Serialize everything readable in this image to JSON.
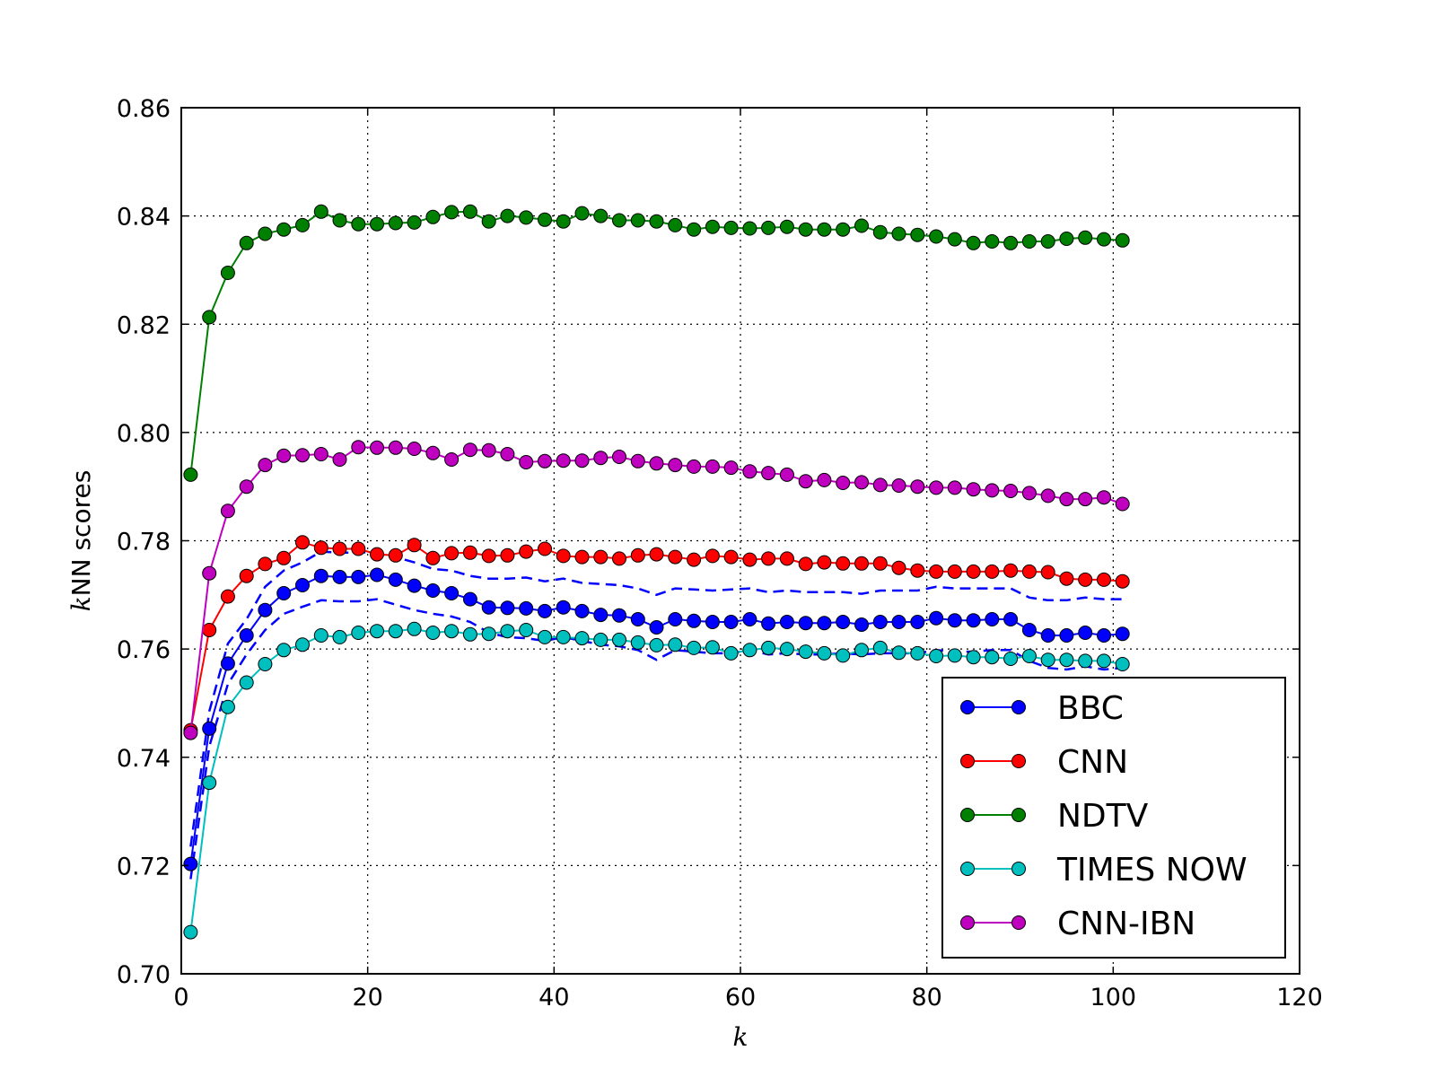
{
  "chart_data": {
    "type": "line",
    "title": "",
    "xlabel": "k",
    "ylabel_italic": "k",
    "ylabel_rest": "NN scores",
    "xlim": [
      0,
      120
    ],
    "ylim": [
      0.7,
      0.86
    ],
    "xticks": [
      0,
      20,
      40,
      60,
      80,
      100,
      120
    ],
    "yticks": [
      0.7,
      0.72,
      0.74,
      0.76,
      0.78,
      0.8,
      0.82,
      0.84,
      0.86
    ],
    "xtick_labels": [
      "0",
      "20",
      "40",
      "60",
      "80",
      "100",
      "120"
    ],
    "ytick_labels": [
      "0.70",
      "0.72",
      "0.74",
      "0.76",
      "0.78",
      "0.80",
      "0.82",
      "0.84",
      "0.86"
    ],
    "grid": true,
    "legend_position": "lower-right",
    "x": [
      1,
      3,
      5,
      7,
      9,
      11,
      13,
      15,
      17,
      19,
      21,
      23,
      25,
      27,
      29,
      31,
      33,
      35,
      37,
      39,
      41,
      43,
      45,
      47,
      49,
      51,
      53,
      55,
      57,
      59,
      61,
      63,
      65,
      67,
      69,
      71,
      73,
      75,
      77,
      79,
      81,
      83,
      85,
      87,
      89,
      91,
      93,
      95,
      97,
      99,
      101
    ],
    "series": [
      {
        "name": "BBC",
        "color": "#0000ff",
        "values": [
          0.7203,
          0.7453,
          0.7573,
          0.7625,
          0.7672,
          0.7703,
          0.7718,
          0.7735,
          0.7733,
          0.7733,
          0.7737,
          0.7728,
          0.7717,
          0.7708,
          0.7703,
          0.7692,
          0.7677,
          0.7676,
          0.7675,
          0.767,
          0.7677,
          0.767,
          0.7663,
          0.7662,
          0.7655,
          0.764,
          0.7655,
          0.7652,
          0.765,
          0.765,
          0.7655,
          0.7647,
          0.765,
          0.7648,
          0.7648,
          0.765,
          0.7645,
          0.765,
          0.765,
          0.765,
          0.7657,
          0.7653,
          0.7653,
          0.7655,
          0.7655,
          0.7635,
          0.7625,
          0.7625,
          0.763,
          0.7625,
          0.7628
        ]
      },
      {
        "name": "CNN",
        "color": "#ff0000",
        "values": [
          0.745,
          0.7635,
          0.7697,
          0.7735,
          0.7757,
          0.7768,
          0.7797,
          0.7787,
          0.7785,
          0.7785,
          0.7775,
          0.7773,
          0.7792,
          0.7768,
          0.7777,
          0.7778,
          0.7772,
          0.7773,
          0.778,
          0.7785,
          0.7772,
          0.777,
          0.777,
          0.7767,
          0.7773,
          0.7775,
          0.777,
          0.7765,
          0.7772,
          0.777,
          0.7765,
          0.7767,
          0.7767,
          0.7757,
          0.776,
          0.7758,
          0.7758,
          0.7758,
          0.775,
          0.7745,
          0.7743,
          0.7743,
          0.7743,
          0.7743,
          0.7745,
          0.7743,
          0.7742,
          0.773,
          0.7728,
          0.7728,
          0.7725
        ]
      },
      {
        "name": "NDTV",
        "color": "#008000",
        "values": [
          0.7922,
          0.8213,
          0.8295,
          0.835,
          0.8367,
          0.8375,
          0.8383,
          0.8408,
          0.8392,
          0.8385,
          0.8385,
          0.8387,
          0.8388,
          0.8398,
          0.8407,
          0.8408,
          0.839,
          0.84,
          0.8397,
          0.8393,
          0.839,
          0.8405,
          0.84,
          0.8392,
          0.8392,
          0.839,
          0.8383,
          0.8375,
          0.838,
          0.8378,
          0.8377,
          0.8378,
          0.838,
          0.8375,
          0.8375,
          0.8375,
          0.8382,
          0.837,
          0.8367,
          0.8365,
          0.8362,
          0.8357,
          0.835,
          0.8353,
          0.835,
          0.8353,
          0.8353,
          0.8358,
          0.836,
          0.8357,
          0.8355
        ]
      },
      {
        "name": "TIMES NOW",
        "color": "#00bfbf",
        "values": [
          0.7077,
          0.7353,
          0.7493,
          0.7538,
          0.7572,
          0.7598,
          0.7608,
          0.7625,
          0.7622,
          0.763,
          0.7633,
          0.7633,
          0.7637,
          0.763,
          0.7633,
          0.7627,
          0.7628,
          0.7633,
          0.7635,
          0.7622,
          0.7622,
          0.762,
          0.7617,
          0.7617,
          0.7612,
          0.7607,
          0.7608,
          0.7602,
          0.7603,
          0.7592,
          0.7598,
          0.7602,
          0.76,
          0.7595,
          0.7592,
          0.7588,
          0.7598,
          0.7602,
          0.7593,
          0.7592,
          0.7587,
          0.7588,
          0.7585,
          0.7585,
          0.7582,
          0.7587,
          0.758,
          0.758,
          0.7578,
          0.7578,
          0.7572
        ]
      },
      {
        "name": "CNN-IBN",
        "color": "#bf00bf",
        "values": [
          0.7445,
          0.774,
          0.7855,
          0.79,
          0.794,
          0.7957,
          0.7958,
          0.796,
          0.795,
          0.7973,
          0.7972,
          0.7972,
          0.797,
          0.7962,
          0.795,
          0.7968,
          0.7967,
          0.796,
          0.7945,
          0.7947,
          0.7948,
          0.7948,
          0.7953,
          0.7955,
          0.7947,
          0.7943,
          0.794,
          0.7937,
          0.7937,
          0.7935,
          0.7928,
          0.7925,
          0.7922,
          0.791,
          0.7912,
          0.7907,
          0.7908,
          0.7903,
          0.7902,
          0.79,
          0.7898,
          0.7898,
          0.7895,
          0.7893,
          0.7892,
          0.7888,
          0.7883,
          0.7877,
          0.7877,
          0.788,
          0.7868
        ]
      }
    ],
    "bands": [
      {
        "series": "BBC",
        "color": "#0000ff",
        "upper": [
          0.7235,
          0.7485,
          0.761,
          0.7655,
          0.7715,
          0.7745,
          0.776,
          0.778,
          0.7778,
          0.7778,
          0.778,
          0.777,
          0.776,
          0.7748,
          0.7745,
          0.7735,
          0.773,
          0.773,
          0.7732,
          0.7725,
          0.773,
          0.7722,
          0.772,
          0.7718,
          0.7712,
          0.77,
          0.7712,
          0.771,
          0.7708,
          0.771,
          0.7712,
          0.7705,
          0.7708,
          0.7705,
          0.7705,
          0.7705,
          0.7702,
          0.7708,
          0.7708,
          0.7708,
          0.7715,
          0.7712,
          0.7712,
          0.7712,
          0.7712,
          0.7695,
          0.769,
          0.769,
          0.7695,
          0.7692,
          0.7692
        ],
        "lower": [
          0.7175,
          0.742,
          0.7535,
          0.759,
          0.7635,
          0.7665,
          0.7678,
          0.769,
          0.7688,
          0.7688,
          0.7692,
          0.7682,
          0.7672,
          0.7665,
          0.766,
          0.765,
          0.763,
          0.7622,
          0.762,
          0.7615,
          0.7622,
          0.7615,
          0.7608,
          0.7605,
          0.7598,
          0.758,
          0.7598,
          0.7595,
          0.7592,
          0.7592,
          0.7598,
          0.759,
          0.7592,
          0.759,
          0.759,
          0.7592,
          0.759,
          0.7592,
          0.7592,
          0.7592,
          0.7598,
          0.7595,
          0.7595,
          0.7598,
          0.7598,
          0.7578,
          0.7565,
          0.7562,
          0.7568,
          0.7562,
          0.7565
        ]
      }
    ]
  }
}
